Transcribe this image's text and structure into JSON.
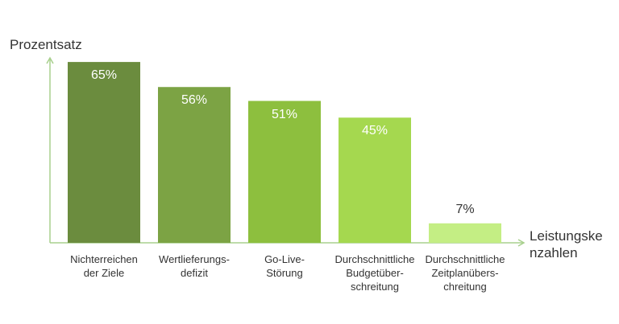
{
  "chart_data": {
    "type": "bar",
    "y_label": "Prozentsatz",
    "x_label": "Leistungske\nnzahlen",
    "categories": [
      "Nichterreichen\nder Ziele",
      "Wertlieferungs-\ndefizit",
      "Go-Live-\nStörung",
      "Durchschnittliche\nBudgetüber-\nschreitung",
      "Durchschnittliche\nZeitplanübers-\nchreitung"
    ],
    "values": [
      65,
      56,
      51,
      45,
      7
    ],
    "value_labels": [
      "65%",
      "56%",
      "51%",
      "45%",
      "7%"
    ],
    "colors": [
      "#6b8c3e",
      "#7ca344",
      "#8dbf3e",
      "#a5d84f",
      "#c4ee84"
    ]
  }
}
